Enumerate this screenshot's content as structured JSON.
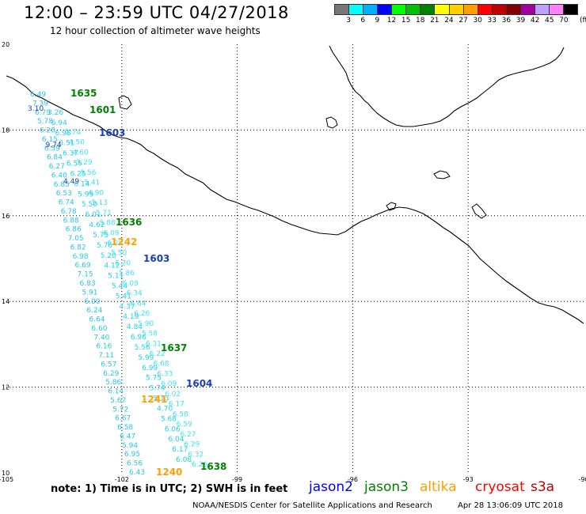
{
  "header": {
    "title": "12:00 – 23:59 UTC 04/27/2018",
    "subtitle": "12 hour collection of altimeter wave heights"
  },
  "colorbar": {
    "unit_label": "(ft)",
    "bins": [
      {
        "label": "3",
        "color": "#777777"
      },
      {
        "label": "6",
        "color": "#00ffff"
      },
      {
        "label": "9",
        "color": "#00b0ff"
      },
      {
        "label": "12",
        "color": "#0000ff"
      },
      {
        "label": "15",
        "color": "#00ff00"
      },
      {
        "label": "18",
        "color": "#00c000"
      },
      {
        "label": "21",
        "color": "#008000"
      },
      {
        "label": "24",
        "color": "#ffff00"
      },
      {
        "label": "27",
        "color": "#ffd000"
      },
      {
        "label": "30",
        "color": "#ffa000"
      },
      {
        "label": "33",
        "color": "#ff0000"
      },
      {
        "label": "36",
        "color": "#c00000"
      },
      {
        "label": "39",
        "color": "#800000"
      },
      {
        "label": "42",
        "color": "#a000a0"
      },
      {
        "label": "45",
        "color": "#c0a0ff"
      },
      {
        "label": "70",
        "color": "#ff80ff"
      },
      {
        "label": "",
        "color": "#000000"
      }
    ]
  },
  "map": {
    "lon_labels": [
      "-105",
      "-102",
      "-99",
      "-96",
      "-93",
      "-90"
    ],
    "lat_labels": [
      "10",
      "12",
      "14",
      "16",
      "18",
      "20"
    ],
    "time_labels": [
      {
        "text": "1635",
        "color": "#008000"
      },
      {
        "text": "1601",
        "color": "#008000"
      },
      {
        "text": "1603",
        "color": "#1a3fb0"
      },
      {
        "text": "1636",
        "color": "#008000"
      },
      {
        "text": "1242",
        "color": "#ffa000"
      },
      {
        "text": "1603",
        "color": "#1a3fb0"
      },
      {
        "text": "1637",
        "color": "#008000"
      },
      {
        "text": "1604",
        "color": "#1a3fb0"
      },
      {
        "text": "1241",
        "color": "#ffa000"
      },
      {
        "text": "1638",
        "color": "#008000"
      },
      {
        "text": "1240",
        "color": "#ffa000"
      }
    ],
    "track_left_values": [
      "6.49",
      "7.39",
      "6.79",
      "5.78",
      "6.28",
      "6.15",
      "6.59",
      "6.84",
      "6.27",
      "6.40",
      "6.85",
      "6.53",
      "6.74",
      "6.78",
      "6.88",
      "6.86",
      "7.05",
      "6.82",
      "6.98",
      "6.69",
      "7.15",
      "6.83",
      "5.91",
      "6.00",
      "6.24",
      "6.64",
      "6.60",
      "7.40",
      "6.16",
      "7.11",
      "6.57",
      "6.29",
      "5.86",
      "6.14",
      "5.67",
      "5.72",
      "6.67",
      "6.58",
      "6.47",
      "5.94",
      "6.95",
      "6.56",
      "6.43"
    ],
    "track_mid_values": [
      "3.26",
      "6.94",
      "6.98",
      "6.51",
      "6.37",
      "6.55",
      "6.25",
      "6.14",
      "5.99",
      "5.50",
      "6.01",
      "4.62",
      "5.75",
      "5.76",
      "5.20",
      "4.12",
      "5.11",
      "5.44",
      "5.41",
      "4.37",
      "4.19",
      "4.84",
      "6.96",
      "5.56",
      "5.99",
      "6.99",
      "5.75",
      "5.74",
      "5.13",
      "4.70",
      "5.68",
      "6.06",
      "6.04",
      "6.17",
      "6.08"
    ],
    "track_right_values": [
      "3.74",
      "4.50",
      "4.60",
      "5.29",
      "5.56",
      "5.41",
      "4.90",
      "5.13",
      "5.71",
      "5.88",
      "6.09",
      "6.28",
      "5.50",
      "6.20",
      "5.86",
      "6.09",
      "6.34",
      "6.64",
      "6.26",
      "5.90",
      "5.58",
      "6.31",
      "6.22",
      "6.68",
      "6.33",
      "6.09",
      "6.02",
      "6.17",
      "6.58",
      "6.59",
      "6.27",
      "6.29",
      "6.32",
      "6.26"
    ],
    "jason2_mid_values": [
      "3.10",
      "9.74",
      "4.49"
    ]
  },
  "legend": {
    "note": "note: 1) Time is in UTC; 2) SWH is in feet",
    "satellites": [
      {
        "name": "jason2",
        "color": "#0000ff"
      },
      {
        "name": "jason3",
        "color": "#008000"
      },
      {
        "name": "altika",
        "color": "#ffa000"
      },
      {
        "name": "cryosat",
        "color": "#ff0000"
      },
      {
        "name": "s3a",
        "color": "#c00000"
      }
    ]
  },
  "footer": {
    "credit": "NOAA/NESDIS Center for Satellite Applications and Research",
    "timestamp": "Apr 28 13:06:09 UTC 2018"
  }
}
